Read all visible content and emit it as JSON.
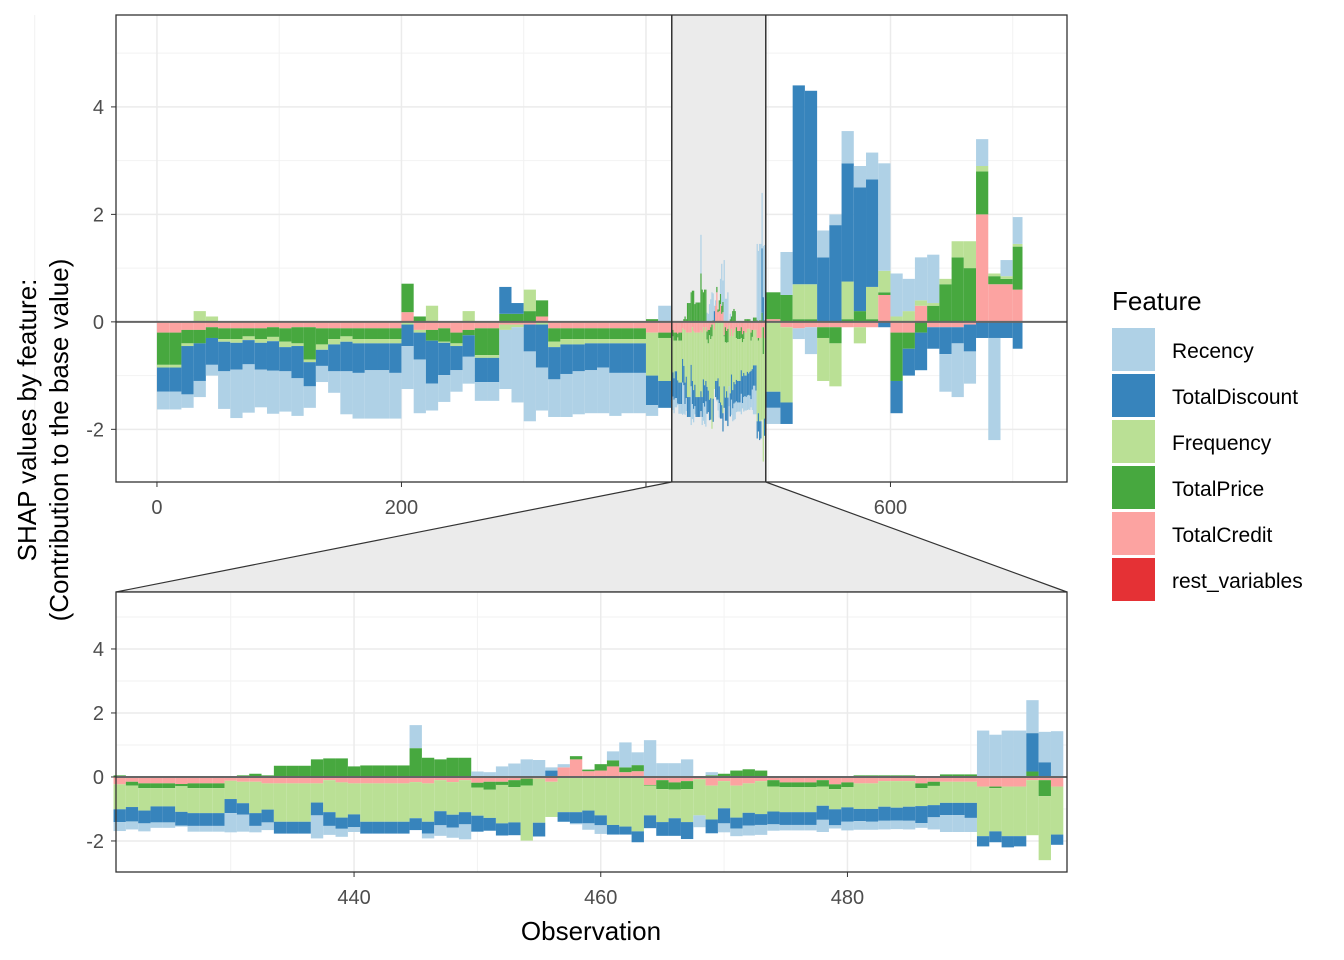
{
  "chart_data": {
    "type": "bar",
    "stacked": true,
    "ylabel_lines": [
      "SHAP values by feature:",
      "(Contribution to the base value)"
    ],
    "xlabel": "Observation",
    "legend": {
      "title": "Feature",
      "placement": "right"
    },
    "grid": true,
    "features": [
      {
        "name": "Recency",
        "color": "#afd1e6"
      },
      {
        "name": "TotalDiscount",
        "color": "#3784bc"
      },
      {
        "name": "Frequency",
        "color": "#bae095"
      },
      {
        "name": "TotalPrice",
        "color": "#47a83f"
      },
      {
        "name": "TotalCredit",
        "color": "#fca3a1"
      },
      {
        "name": "rest_variables",
        "color": "#e53135"
      }
    ],
    "value_order": [
      "Recency",
      "TotalDiscount",
      "Frequency",
      "TotalPrice",
      "TotalCredit"
    ],
    "overview": {
      "xlim": [
        -33.5,
        744.4
      ],
      "ylim": [
        -2.98,
        5.71
      ],
      "x_ticks": [
        0,
        200,
        400,
        600
      ],
      "y_ticks": [
        -2,
        0,
        2,
        4
      ],
      "zoom_range": [
        421.1,
        498
      ],
      "block_size": 10,
      "blocks": [
        [
          0,
          [
            -0.33,
            -0.45,
            -0.05,
            -0.6,
            -0.2
          ]
        ],
        [
          10,
          [
            -0.33,
            -0.45,
            -0.05,
            -0.6,
            -0.2
          ]
        ],
        [
          20,
          [
            -0.25,
            -0.9,
            -0.05,
            -0.25,
            -0.15
          ]
        ],
        [
          30,
          [
            -0.3,
            -0.7,
            0.2,
            -0.25,
            -0.15
          ]
        ],
        [
          40,
          [
            -0.2,
            -0.5,
            0.1,
            -0.2,
            -0.1
          ]
        ],
        [
          50,
          [
            -0.7,
            -0.55,
            -0.05,
            -0.2,
            -0.12
          ]
        ],
        [
          60,
          [
            -0.9,
            -0.5,
            -0.07,
            -0.2,
            -0.12
          ]
        ],
        [
          70,
          [
            -0.9,
            -0.45,
            -0.07,
            -0.15,
            -0.12
          ]
        ],
        [
          80,
          [
            -0.7,
            -0.5,
            -0.07,
            -0.2,
            -0.12
          ]
        ],
        [
          90,
          [
            -0.8,
            -0.55,
            -0.08,
            -0.18,
            -0.1
          ]
        ],
        [
          100,
          [
            -0.75,
            -0.45,
            -0.1,
            -0.25,
            -0.12
          ]
        ],
        [
          110,
          [
            -0.7,
            -0.6,
            -0.05,
            -0.3,
            -0.1
          ]
        ],
        [
          120,
          [
            -0.4,
            -0.45,
            -0.05,
            -0.6,
            -0.1
          ]
        ],
        [
          130,
          [
            -0.3,
            -0.3,
            -0.1,
            -0.3,
            -0.12
          ]
        ],
        [
          140,
          [
            -0.4,
            -0.5,
            -0.1,
            -0.2,
            -0.12
          ]
        ],
        [
          150,
          [
            -0.8,
            -0.55,
            -0.1,
            -0.15,
            -0.12
          ]
        ],
        [
          160,
          [
            -0.85,
            -0.55,
            -0.08,
            -0.2,
            -0.12
          ]
        ],
        [
          170,
          [
            -0.9,
            -0.5,
            -0.08,
            -0.2,
            -0.12
          ]
        ],
        [
          180,
          [
            -0.9,
            -0.5,
            -0.08,
            -0.2,
            -0.12
          ]
        ],
        [
          190,
          [
            -0.85,
            -0.55,
            -0.08,
            -0.2,
            -0.12
          ]
        ],
        [
          200,
          [
            -0.8,
            -0.4,
            -0.05,
            0.53,
            0.18
          ]
        ],
        [
          210,
          [
            -1.0,
            -0.5,
            -0.05,
            0.1,
            -0.15
          ]
        ],
        [
          220,
          [
            -0.5,
            -0.8,
            0.3,
            -0.2,
            -0.15
          ]
        ],
        [
          230,
          [
            -0.5,
            -0.6,
            -0.02,
            -0.25,
            -0.12
          ]
        ],
        [
          240,
          [
            -0.4,
            -0.45,
            -0.05,
            -0.2,
            -0.2
          ]
        ],
        [
          250,
          [
            -0.5,
            -0.4,
            0.2,
            -0.1,
            -0.15
          ]
        ],
        [
          260,
          [
            -0.35,
            -0.45,
            -0.05,
            -0.5,
            -0.12
          ]
        ],
        [
          270,
          [
            -0.35,
            -0.45,
            -0.05,
            -0.5,
            -0.12
          ]
        ],
        [
          280,
          [
            -1.1,
            0.5,
            -0.1,
            0.15,
            -0.05
          ]
        ],
        [
          290,
          [
            -1.4,
            0.2,
            -0.05,
            0.15,
            -0.05
          ]
        ],
        [
          300,
          [
            -1.3,
            -0.5,
            0.4,
            0.2,
            -0.05
          ]
        ],
        [
          310,
          [
            -0.8,
            -0.8,
            -0.05,
            0.3,
            0.1
          ]
        ],
        [
          320,
          [
            -0.7,
            -0.6,
            -0.1,
            -0.25,
            -0.12
          ]
        ],
        [
          330,
          [
            -0.8,
            -0.55,
            -0.1,
            -0.2,
            -0.12
          ]
        ],
        [
          340,
          [
            -0.8,
            -0.5,
            -0.1,
            -0.2,
            -0.12
          ]
        ],
        [
          350,
          [
            -0.8,
            -0.5,
            -0.08,
            -0.2,
            -0.12
          ]
        ],
        [
          360,
          [
            -0.85,
            -0.45,
            -0.08,
            -0.2,
            -0.12
          ]
        ],
        [
          370,
          [
            -0.8,
            -0.55,
            -0.08,
            -0.2,
            -0.12
          ]
        ],
        [
          380,
          [
            -0.75,
            -0.55,
            -0.08,
            -0.2,
            -0.12
          ]
        ],
        [
          390,
          [
            -0.75,
            -0.55,
            -0.08,
            -0.2,
            -0.12
          ]
        ],
        [
          400,
          [
            -0.2,
            -0.55,
            -0.8,
            0.05,
            -0.2
          ]
        ],
        [
          410,
          [
            0.3,
            -0.5,
            -0.8,
            -0.1,
            -0.2
          ]
        ],
        [
          500,
          [
            -0.3,
            -0.3,
            -1.3,
            0.5,
            0.05
          ]
        ],
        [
          510,
          [
            0.8,
            -0.4,
            -1.4,
            0.5,
            -0.1
          ]
        ],
        [
          520,
          [
            -0.2,
            3.7,
            0.65,
            0.05,
            -0.12
          ]
        ],
        [
          530,
          [
            -0.5,
            3.6,
            0.65,
            0.05,
            -0.1
          ]
        ],
        [
          540,
          [
            0.5,
            1.2,
            -0.8,
            -0.2,
            -0.1
          ]
        ],
        [
          550,
          [
            0.2,
            1.8,
            -0.8,
            -0.3,
            -0.1
          ]
        ],
        [
          560,
          [
            0.6,
            2.2,
            0.7,
            0.05,
            -0.1
          ]
        ],
        [
          570,
          [
            0.4,
            2.3,
            -0.3,
            0.2,
            -0.1
          ]
        ],
        [
          580,
          [
            0.5,
            2.0,
            0.6,
            0.05,
            -0.1
          ]
        ],
        [
          590,
          [
            2.0,
            -0.1,
            0.4,
            0.05,
            0.5
          ]
        ],
        [
          600,
          [
            0.8,
            -0.6,
            0.1,
            -0.9,
            -0.2
          ]
        ],
        [
          610,
          [
            0.6,
            -0.5,
            0.2,
            -0.3,
            -0.2
          ]
        ],
        [
          620,
          [
            0.8,
            -0.7,
            0.1,
            -0.2,
            0.3
          ]
        ],
        [
          630,
          [
            0.9,
            -0.4,
            0.05,
            0.3,
            -0.1
          ]
        ],
        [
          640,
          [
            -0.7,
            -0.5,
            0.1,
            0.7,
            -0.1
          ]
        ],
        [
          650,
          [
            -1.0,
            -0.3,
            0.3,
            1.2,
            -0.1
          ]
        ],
        [
          660,
          [
            -0.6,
            -0.5,
            0.5,
            1.0,
            -0.05
          ]
        ],
        [
          670,
          [
            0.5,
            -0.3,
            0.1,
            0.8,
            2.0
          ]
        ],
        [
          680,
          [
            -1.9,
            -0.3,
            0.05,
            0.15,
            0.7
          ]
        ],
        [
          690,
          [
            0.3,
            -0.3,
            0.05,
            0.1,
            0.7
          ]
        ],
        [
          700,
          [
            0.5,
            -0.5,
            0.05,
            0.8,
            0.6
          ]
        ]
      ]
    },
    "zoom": {
      "xlim": [
        420.7,
        497.8
      ],
      "ylim": [
        -2.97,
        5.78
      ],
      "x_ticks": [
        440,
        460,
        480
      ],
      "y_ticks": [
        -2,
        0,
        2,
        4
      ],
      "first_observation": 421,
      "values": [
        [
          -0.28,
          -0.4,
          -0.78,
          0.05,
          -0.23
        ],
        [
          -0.25,
          -0.45,
          -0.67,
          -0.12,
          -0.15
        ],
        [
          -0.25,
          -0.4,
          -0.7,
          -0.15,
          -0.2
        ],
        [
          -0.17,
          -0.5,
          -0.57,
          -0.15,
          -0.2
        ],
        [
          -0.17,
          -0.5,
          -0.57,
          -0.15,
          -0.2
        ],
        [
          -0.03,
          -0.43,
          -0.8,
          -0.07,
          -0.22
        ],
        [
          -0.18,
          -0.4,
          -0.78,
          -0.15,
          -0.2
        ],
        [
          -0.18,
          -0.4,
          -0.78,
          -0.15,
          -0.2
        ],
        [
          -0.18,
          -0.4,
          -0.78,
          -0.15,
          -0.2
        ],
        [
          -0.6,
          -0.44,
          -0.57,
          0,
          -0.12
        ],
        [
          -0.53,
          -0.36,
          -0.67,
          0.05,
          -0.15
        ],
        [
          -0.2,
          -0.4,
          -0.98,
          0.1,
          -0.15
        ],
        [
          -0.24,
          -0.4,
          -0.82,
          0.05,
          -0.2
        ],
        [
          0,
          -0.37,
          -1.2,
          0.35,
          -0.2
        ],
        [
          0,
          -0.37,
          -1.2,
          0.35,
          -0.2
        ],
        [
          0,
          -0.37,
          -1.2,
          0.35,
          -0.2
        ],
        [
          -0.72,
          -0.4,
          -0.6,
          0.55,
          -0.2
        ],
        [
          -0.28,
          -0.43,
          -1.0,
          0.58,
          -0.1
        ],
        [
          -0.25,
          -0.35,
          -1.1,
          0.58,
          -0.17
        ],
        [
          -0.15,
          -0.4,
          -0.97,
          0.33,
          -0.2
        ],
        [
          0,
          -0.37,
          -1.2,
          0.36,
          -0.2
        ],
        [
          0,
          -0.37,
          -1.2,
          0.36,
          -0.2
        ],
        [
          0,
          -0.37,
          -1.2,
          0.36,
          -0.2
        ],
        [
          0,
          -0.37,
          -1.2,
          0.36,
          -0.2
        ],
        [
          0.72,
          -0.37,
          -1.13,
          0.9,
          -0.16
        ],
        [
          -0.15,
          -0.37,
          -1.2,
          0.6,
          -0.2
        ],
        [
          -0.33,
          -0.44,
          -0.97,
          0.55,
          -0.1
        ],
        [
          -0.32,
          -0.4,
          -1.02,
          0.6,
          -0.16
        ],
        [
          -0.47,
          -0.38,
          -1.0,
          0.6,
          -0.1
        ],
        [
          0.17,
          -0.5,
          -0.88,
          -0.15,
          -0.18
        ],
        [
          0.15,
          -0.4,
          -0.88,
          -0.25,
          -0.15
        ],
        [
          0.33,
          -0.38,
          -1.2,
          -0.1,
          -0.15
        ],
        [
          0.42,
          -0.4,
          -1.1,
          -0.22,
          -0.1
        ],
        [
          0.55,
          0,
          -1.72,
          -0.22,
          -0.05
        ],
        [
          0.5,
          -0.43,
          -1.38,
          0.03,
          -0.05
        ],
        [
          0.1,
          0.2,
          -1.1,
          0,
          -0.15
        ],
        [
          0.1,
          -0.3,
          -1.1,
          0,
          0.3
        ],
        [
          -0.03,
          -0.35,
          -1.1,
          0.1,
          0.55
        ],
        [
          -0.2,
          -0.4,
          -1.05,
          0.05,
          0.18
        ],
        [
          -0.27,
          -0.31,
          -1.2,
          0.2,
          0.2
        ],
        [
          0.28,
          -0.3,
          -1.5,
          0.19,
          0.33
        ],
        [
          0.78,
          -0.25,
          -1.55,
          0.15,
          0.15
        ],
        [
          0.4,
          -0.34,
          -1.7,
          0.19,
          0.18
        ],
        [
          1.15,
          -0.4,
          -0.93,
          -0.02,
          -0.25
        ],
        [
          0.43,
          -0.43,
          -1.03,
          -0.28,
          -0.1
        ],
        [
          0.43,
          -0.55,
          -0.9,
          -0.22,
          -0.17
        ],
        [
          0.55,
          -0.53,
          -1.03,
          -0.25,
          -0.13
        ],
        [
          -0.37,
          0,
          -1.13,
          0,
          -0.07
        ],
        [
          0.1,
          -0.43,
          -1.06,
          0.05,
          -0.27
        ],
        [
          -0.28,
          -0.47,
          -0.85,
          0.1,
          -0.13
        ],
        [
          -0.24,
          -0.34,
          -1.0,
          0.2,
          -0.27
        ],
        [
          -0.31,
          -0.4,
          -0.92,
          0.24,
          -0.2
        ],
        [
          -0.31,
          -0.34,
          -1.03,
          0.2,
          -0.13
        ],
        [
          -0.2,
          -0.4,
          -0.78,
          -0.2,
          -0.1
        ],
        [
          -0.17,
          -0.4,
          -0.78,
          -0.15,
          -0.17
        ],
        [
          -0.17,
          -0.4,
          -0.78,
          -0.15,
          -0.17
        ],
        [
          -0.17,
          -0.4,
          -0.78,
          -0.15,
          -0.17
        ],
        [
          -0.38,
          -0.44,
          -0.6,
          -0.2,
          -0.1
        ],
        [
          -0.1,
          -0.5,
          -0.63,
          -0.15,
          -0.23
        ],
        [
          -0.27,
          -0.45,
          -0.63,
          -0.15,
          -0.17
        ],
        [
          -0.27,
          -0.38,
          -0.8,
          0.05,
          -0.2
        ],
        [
          -0.25,
          -0.4,
          -0.8,
          0.05,
          -0.2
        ],
        [
          -0.27,
          -0.44,
          -0.8,
          0.05,
          -0.13
        ],
        [
          -0.27,
          -0.4,
          -0.83,
          0.05,
          -0.13
        ],
        [
          -0.27,
          -0.44,
          -0.8,
          0.05,
          -0.13
        ],
        [
          -0.15,
          -0.53,
          -0.56,
          -0.15,
          -0.2
        ],
        [
          -0.38,
          -0.38,
          -0.6,
          -0.13,
          -0.15
        ],
        [
          -0.53,
          -0.38,
          -0.66,
          0.08,
          -0.15
        ],
        [
          -0.53,
          -0.38,
          -0.66,
          0.08,
          -0.15
        ],
        [
          -0.44,
          -0.47,
          -0.66,
          0.08,
          -0.15
        ],
        [
          1.42,
          -0.32,
          -1.55,
          0.03,
          -0.3
        ],
        [
          1.32,
          -0.34,
          -1.35,
          -0.05,
          -0.3
        ],
        [
          1.42,
          -0.35,
          -1.55,
          0.03,
          -0.3
        ],
        [
          1.42,
          -0.32,
          -1.55,
          0.03,
          -0.3
        ],
        [
          1.03,
          1.2,
          -1.72,
          0.17,
          -0.1
        ],
        [
          0.95,
          0.46,
          -2.0,
          -0.5,
          -0.1
        ],
        [
          1.4,
          -0.32,
          -1.5,
          0.03,
          -0.3
        ]
      ]
    }
  }
}
